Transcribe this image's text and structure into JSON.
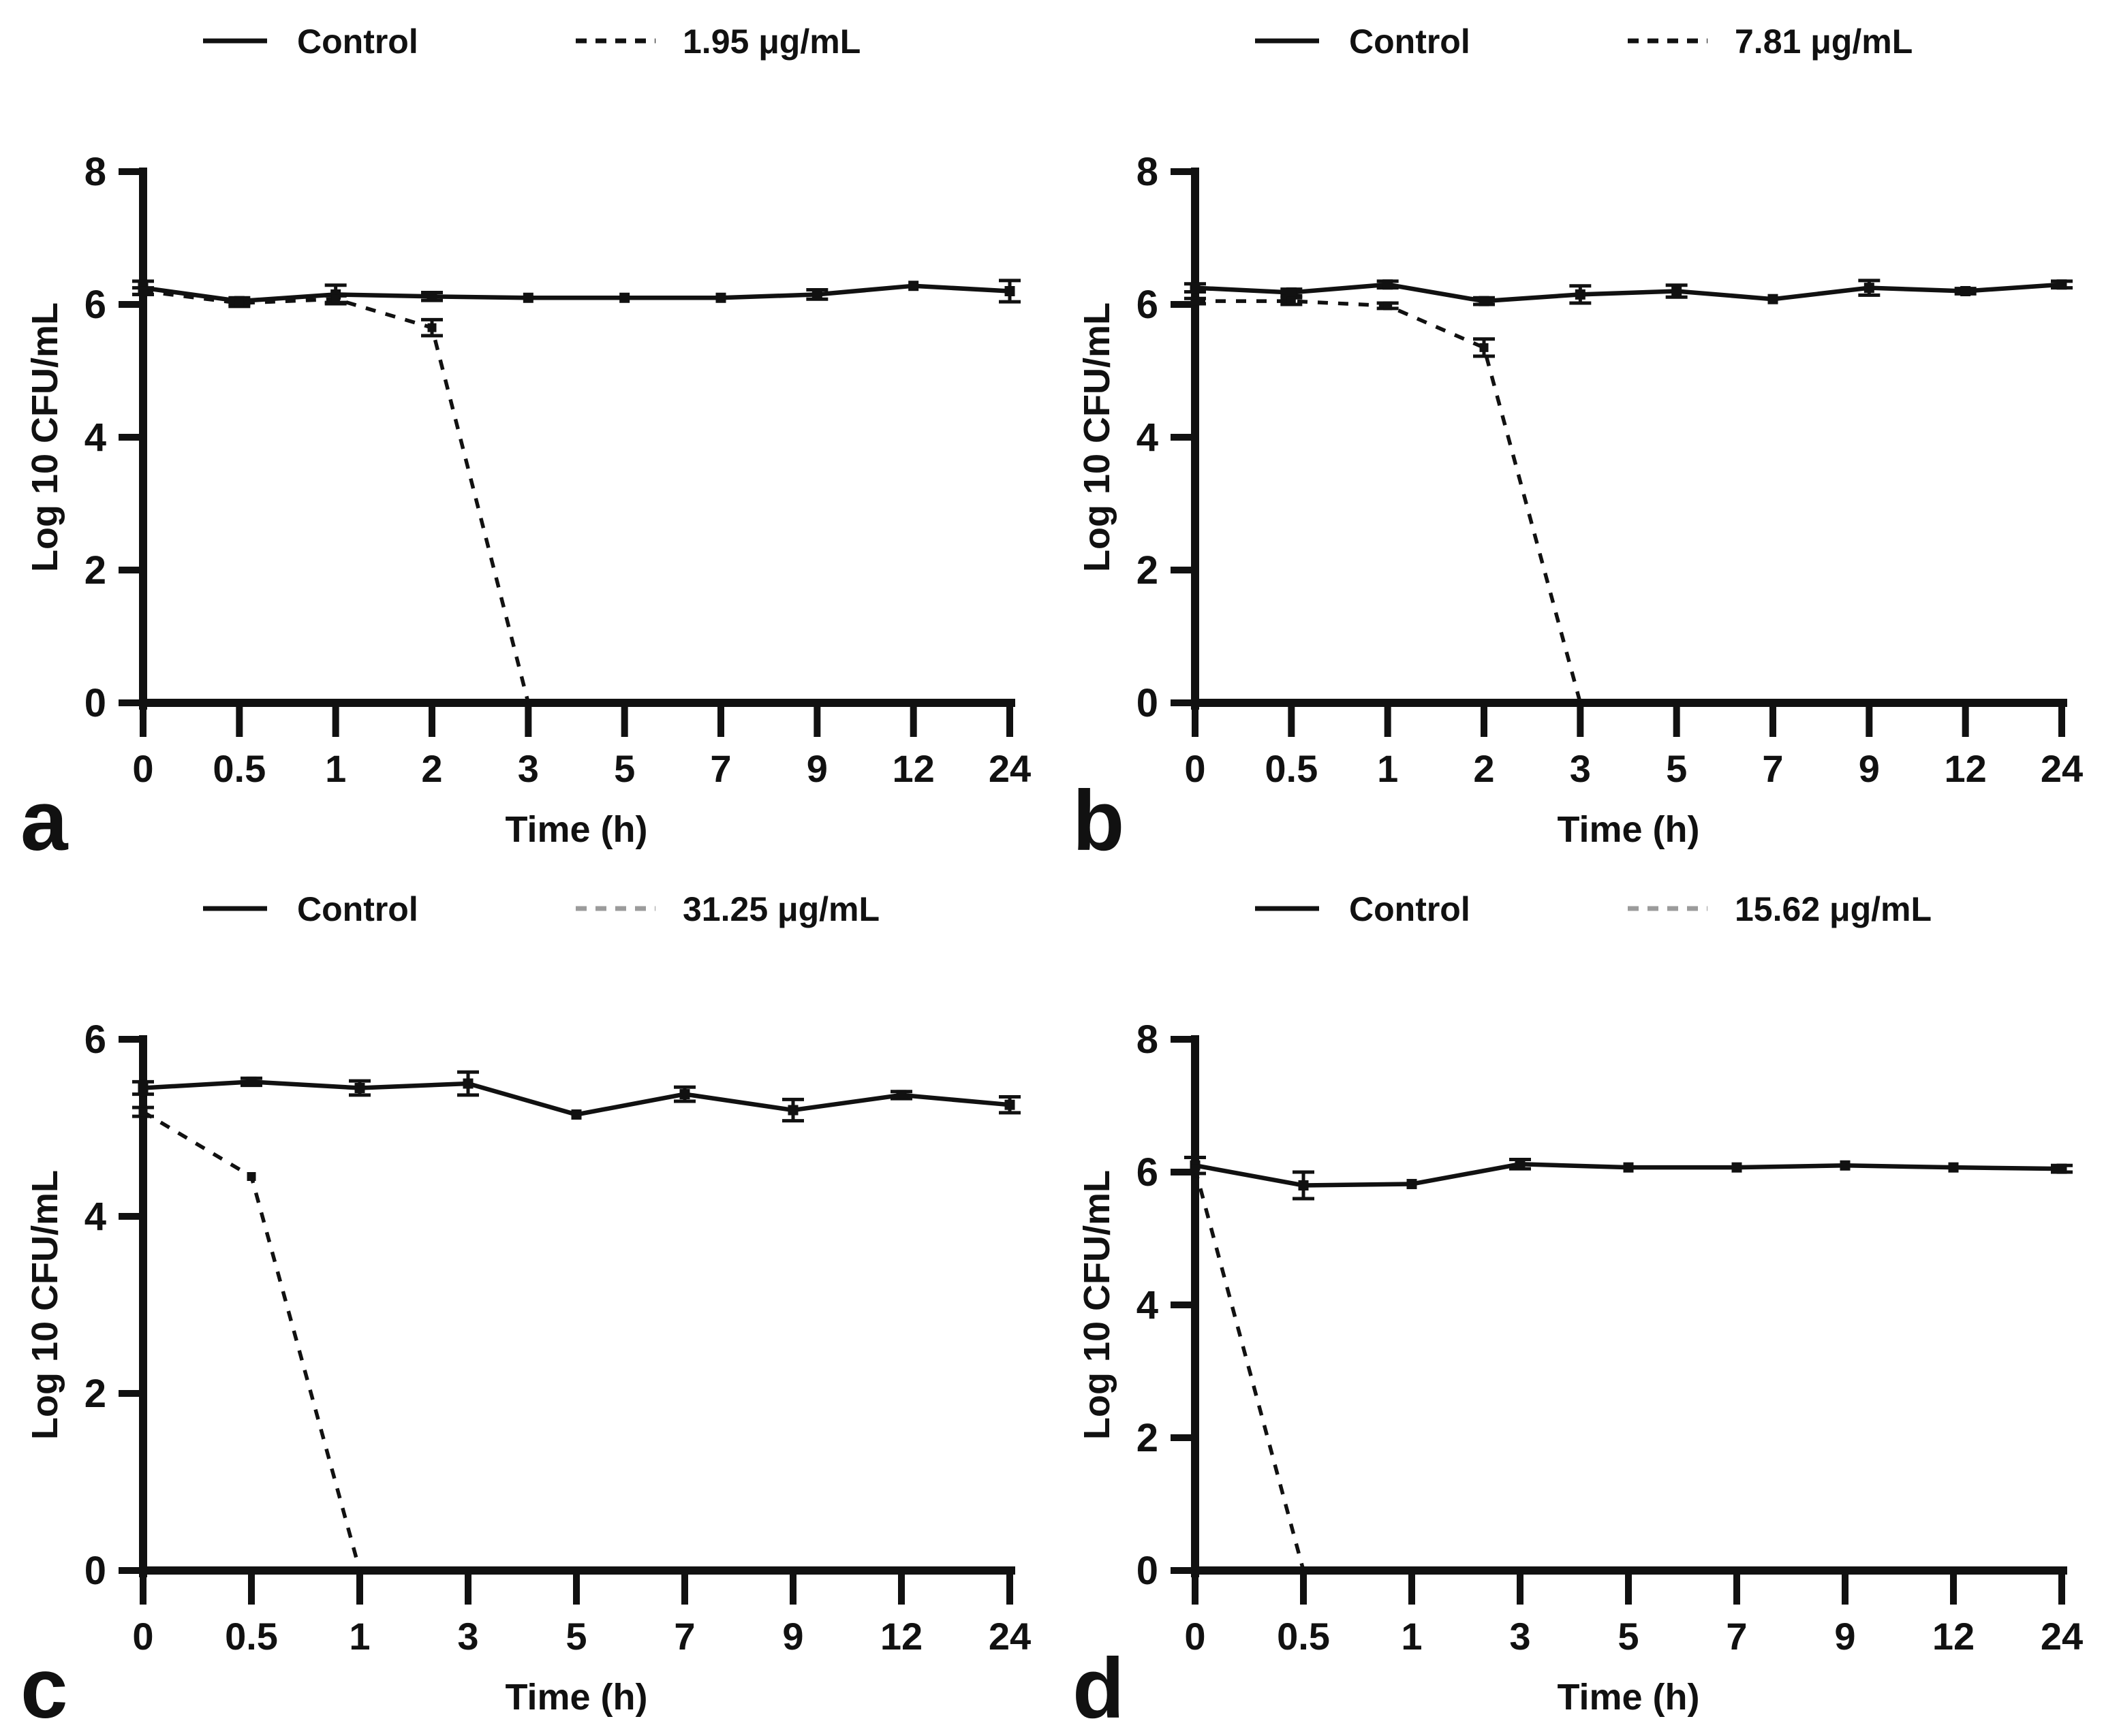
{
  "figure": {
    "background": "#ffffff",
    "ink": "#111111",
    "ylabel": "Log 10 CFU/mL",
    "xlabel": "Time (h)",
    "panel_labels": [
      "a",
      "b",
      "c",
      "d"
    ]
  },
  "chart_data": [
    {
      "type": "line",
      "panel_label": "a",
      "xlabel": "Time (h)",
      "ylabel": "Log 10 CFU/mL",
      "categories": [
        "0",
        "0.5",
        "1",
        "2",
        "3",
        "5",
        "7",
        "9",
        "12",
        "24"
      ],
      "ylim": [
        0,
        8
      ],
      "yticks": [
        0,
        2,
        4,
        6,
        8
      ],
      "grid": false,
      "legend_position": "top",
      "series": [
        {
          "name": "Control",
          "style": "solid",
          "color": "#111111",
          "legend_color": "#111111",
          "x": [
            "0",
            "0.5",
            "1",
            "2",
            "3",
            "5",
            "7",
            "9",
            "12",
            "24"
          ],
          "values": [
            6.25,
            6.05,
            6.15,
            6.12,
            6.1,
            6.1,
            6.1,
            6.15,
            6.28,
            6.2
          ],
          "errors": [
            0.1,
            0.05,
            0.14,
            0.06,
            0.03,
            0.03,
            0.03,
            0.07,
            0.03,
            0.16
          ]
        },
        {
          "name": "1.95 μg/mL",
          "style": "dashed",
          "color": "#111111",
          "legend_color": "#111111",
          "x": [
            "0",
            "0.5",
            "1",
            "2",
            "3"
          ],
          "values": [
            6.2,
            6.02,
            6.08,
            5.65,
            0
          ],
          "errors": [
            0.05,
            0.05,
            0.05,
            0.12,
            0
          ]
        }
      ]
    },
    {
      "type": "line",
      "panel_label": "b",
      "xlabel": "Time (h)",
      "ylabel": "Log 10 CFU/mL",
      "categories": [
        "0",
        "0.5",
        "1",
        "2",
        "3",
        "5",
        "7",
        "9",
        "12",
        "24"
      ],
      "ylim": [
        0,
        8
      ],
      "yticks": [
        0,
        2,
        4,
        6,
        8
      ],
      "grid": false,
      "legend_position": "top",
      "series": [
        {
          "name": "Control",
          "style": "solid",
          "color": "#111111",
          "legend_color": "#111111",
          "x": [
            "0",
            "0.5",
            "1",
            "2",
            "3",
            "5",
            "7",
            "9",
            "12",
            "24"
          ],
          "values": [
            6.25,
            6.18,
            6.3,
            6.05,
            6.15,
            6.2,
            6.08,
            6.25,
            6.2,
            6.3
          ],
          "errors": [
            0.06,
            0.05,
            0.05,
            0.05,
            0.13,
            0.09,
            0.03,
            0.11,
            0.04,
            0.05
          ]
        },
        {
          "name": "7.81 μg/mL",
          "style": "dashed",
          "color": "#111111",
          "legend_color": "#111111",
          "x": [
            "0",
            "0.5",
            "1",
            "2",
            "3"
          ],
          "values": [
            6.05,
            6.05,
            5.98,
            5.35,
            0
          ],
          "errors": [
            0.04,
            0.05,
            0.04,
            0.13,
            0
          ]
        }
      ]
    },
    {
      "type": "line",
      "panel_label": "c",
      "xlabel": "Time (h)",
      "ylabel": "Log 10 CFU/mL",
      "categories": [
        "0",
        "0.5",
        "1",
        "3",
        "5",
        "7",
        "9",
        "12",
        "24"
      ],
      "ylim": [
        0,
        6
      ],
      "yticks": [
        0,
        2,
        4,
        6
      ],
      "grid": false,
      "legend_position": "top",
      "series": [
        {
          "name": "Control",
          "style": "solid",
          "color": "#111111",
          "legend_color": "#111111",
          "x": [
            "0",
            "0.5",
            "1",
            "3",
            "5",
            "7",
            "9",
            "12",
            "24"
          ],
          "values": [
            5.45,
            5.52,
            5.45,
            5.5,
            5.15,
            5.38,
            5.2,
            5.37,
            5.26
          ],
          "errors": [
            0.07,
            0.04,
            0.08,
            0.13,
            0.03,
            0.08,
            0.12,
            0.04,
            0.09
          ]
        },
        {
          "name": "31.25 μg/mL",
          "style": "dashed",
          "color": "#111111",
          "legend_color": "#9b9b9b",
          "x": [
            "0",
            "0.5",
            "1"
          ],
          "values": [
            5.18,
            4.45,
            0
          ],
          "errors": [
            0.05,
            0,
            0
          ]
        }
      ]
    },
    {
      "type": "line",
      "panel_label": "d",
      "xlabel": "Time (h)",
      "ylabel": "Log 10 CFU/mL",
      "categories": [
        "0",
        "0.5",
        "1",
        "3",
        "5",
        "7",
        "9",
        "12",
        "24"
      ],
      "ylim": [
        0,
        8
      ],
      "yticks": [
        0,
        2,
        4,
        6,
        8
      ],
      "grid": false,
      "legend_position": "top",
      "series": [
        {
          "name": "Control",
          "style": "solid",
          "color": "#111111",
          "legend_color": "#111111",
          "x": [
            "0",
            "0.5",
            "1",
            "3",
            "5",
            "7",
            "9",
            "12",
            "24"
          ],
          "values": [
            6.1,
            5.8,
            5.82,
            6.12,
            6.07,
            6.07,
            6.1,
            6.07,
            6.05
          ],
          "errors": [
            0.12,
            0.2,
            0.03,
            0.07,
            0.02,
            0.02,
            0.02,
            0.03,
            0.05
          ]
        },
        {
          "name": "15.62 μg/mL",
          "style": "dashed",
          "color": "#111111",
          "legend_color": "#9b9b9b",
          "x": [
            "0",
            "0.5"
          ],
          "values": [
            6.05,
            0
          ],
          "errors": [
            0,
            0
          ]
        }
      ]
    }
  ]
}
